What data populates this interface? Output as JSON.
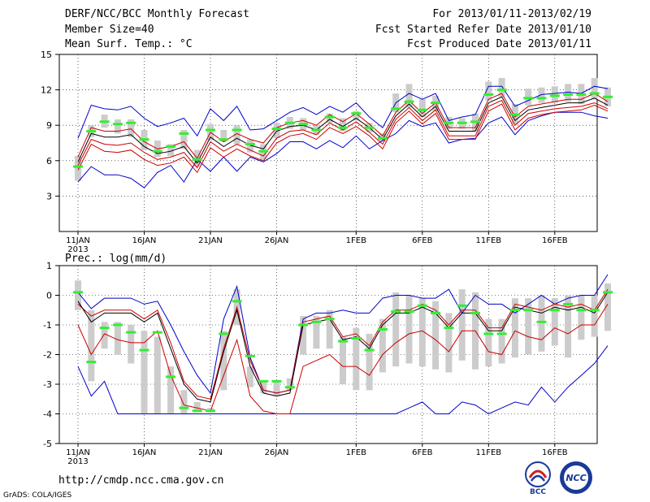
{
  "header": {
    "title": "DERF/NCC/BCC Monthly Forecast",
    "member_size": "Member Size=40",
    "variable": "Mean Surf. Temp.: °C",
    "period": "For 2013/01/11-2013/02/19",
    "started": "Fcst Started Refer Date 2013/01/10",
    "produced": "Fcst Produced Date 2013/01/11"
  },
  "second_panel_label": "Prec.: log(mm/d)",
  "footer": {
    "url": "http://cmdp.ncc.cma.gov.cn",
    "credit": "GrADS: COLA/IGES",
    "logo_left_text": "BCC",
    "logo_right_text": "NCC"
  },
  "colors": {
    "envelope": "#0000cc",
    "percentile": "#cc0000",
    "mean": "#000000",
    "box": "#cccccc",
    "median": "#33ee33"
  },
  "chart_data": [
    {
      "type": "line",
      "title": "Mean Surf. Temp.: °C",
      "ylim": [
        0,
        15
      ],
      "yticks": [
        "3",
        "6",
        "9",
        "12",
        "15"
      ],
      "xticks": [
        "11JAN",
        "16JAN",
        "21JAN",
        "26JAN",
        "1FEB",
        "6FEB",
        "11FEB",
        "16FEB"
      ],
      "xtick_days": [
        0,
        5,
        10,
        15,
        21,
        26,
        31,
        36
      ],
      "year_label": "2013",
      "series": {
        "max": [
          7.9,
          10.7,
          10.4,
          10.3,
          10.6,
          9.6,
          8.9,
          9.2,
          9.6,
          8.1,
          10.4,
          9.4,
          10.6,
          8.6,
          8.7,
          9.4,
          10.1,
          10.5,
          9.9,
          10.6,
          10.1,
          10.9,
          9.7,
          8.8,
          10.9,
          11.7,
          11.2,
          11.7,
          9.4,
          9.7,
          9.9,
          12.3,
          12.3,
          10.6,
          11.1,
          11.6,
          11.7,
          11.8,
          11.7,
          12.3,
          12.1
        ],
        "p90": [
          6.3,
          8.8,
          8.5,
          8.5,
          8.7,
          7.6,
          7.0,
          7.2,
          7.6,
          6.2,
          8.4,
          7.6,
          8.3,
          7.8,
          7.5,
          8.8,
          9.2,
          9.4,
          9.0,
          9.9,
          9.3,
          10.0,
          9.1,
          8.1,
          10.1,
          11.1,
          10.0,
          10.9,
          8.8,
          8.8,
          8.8,
          11.2,
          11.7,
          9.7,
          10.6,
          10.8,
          11.0,
          11.2,
          11.2,
          11.7,
          11.0
        ],
        "mean": [
          5.9,
          8.3,
          8.0,
          8.0,
          8.2,
          7.2,
          6.6,
          6.8,
          7.2,
          5.8,
          8.0,
          7.2,
          7.9,
          7.3,
          7.0,
          8.5,
          8.9,
          9.0,
          8.6,
          9.5,
          8.9,
          9.6,
          8.8,
          7.8,
          9.8,
          10.8,
          9.7,
          10.6,
          8.5,
          8.5,
          8.5,
          10.9,
          11.4,
          9.4,
          10.3,
          10.5,
          10.7,
          10.9,
          10.9,
          11.3,
          10.7
        ],
        "p10": [
          5.6,
          7.8,
          7.4,
          7.3,
          7.5,
          6.7,
          6.1,
          6.3,
          6.7,
          5.4,
          7.6,
          6.8,
          7.4,
          6.9,
          6.4,
          7.9,
          8.5,
          8.6,
          8.2,
          9.2,
          8.6,
          9.3,
          8.4,
          7.4,
          9.5,
          10.5,
          9.4,
          10.3,
          8.1,
          8.1,
          8.1,
          10.6,
          11.1,
          9.0,
          10.0,
          10.2,
          10.4,
          10.5,
          10.6,
          10.9,
          10.4
        ],
        "p5": [
          5.2,
          7.4,
          6.8,
          6.7,
          6.9,
          6.1,
          5.6,
          5.8,
          6.3,
          5.0,
          7.1,
          6.3,
          7.0,
          6.4,
          6.0,
          7.5,
          8.1,
          8.3,
          7.8,
          8.8,
          8.3,
          8.9,
          8.1,
          7.0,
          9.2,
          10.2,
          9.1,
          10.0,
          7.8,
          7.8,
          7.8,
          10.2,
          10.8,
          8.6,
          9.6,
          9.9,
          10.1,
          10.2,
          10.3,
          10.7,
          10.2
        ],
        "min": [
          4.2,
          5.5,
          4.8,
          4.8,
          4.5,
          3.7,
          5.0,
          5.6,
          4.2,
          6.1,
          5.1,
          6.3,
          5.1,
          6.3,
          5.9,
          6.6,
          7.6,
          7.6,
          7.0,
          7.7,
          7.1,
          8.1,
          7.0,
          7.7,
          8.3,
          9.4,
          8.9,
          9.2,
          7.5,
          7.8,
          7.9,
          9.2,
          9.7,
          8.2,
          9.4,
          9.8,
          10.1,
          10.1,
          10.1,
          9.8,
          9.6
        ],
        "box_top": [
          6.4,
          9.0,
          9.9,
          9.5,
          9.5,
          8.6,
          7.7,
          7.4,
          8.6,
          6.9,
          9.1,
          8.6,
          9.0,
          7.8,
          7.4,
          9.2,
          9.7,
          9.6,
          9.0,
          10.0,
          9.6,
          10.2,
          9.2,
          8.3,
          11.7,
          12.5,
          11.2,
          11.5,
          9.7,
          9.6,
          10.0,
          12.7,
          13.0,
          10.8,
          12.1,
          12.2,
          12.3,
          12.5,
          12.5,
          13.0,
          12.2
        ],
        "box_bot": [
          4.3,
          8.0,
          8.8,
          8.3,
          8.0,
          6.9,
          6.3,
          6.4,
          7.0,
          5.5,
          7.7,
          7.6,
          7.4,
          6.7,
          6.1,
          7.9,
          8.7,
          8.6,
          8.2,
          9.2,
          8.5,
          9.4,
          8.4,
          7.6,
          10.1,
          10.5,
          9.7,
          10.2,
          8.7,
          8.7,
          8.5,
          11.1,
          11.4,
          9.1,
          10.7,
          10.9,
          10.9,
          11.0,
          10.8,
          11.2,
          10.6
        ],
        "median": [
          5.5,
          8.5,
          9.3,
          9.1,
          9.2,
          7.8,
          6.8,
          7.2,
          8.3,
          6.1,
          8.6,
          7.8,
          8.6,
          7.4,
          6.8,
          8.7,
          9.2,
          9.1,
          8.6,
          9.7,
          8.8,
          10.0,
          8.8,
          7.9,
          10.4,
          11.0,
          10.3,
          10.9,
          9.2,
          9.2,
          9.3,
          11.6,
          12.0,
          9.9,
          11.3,
          11.3,
          11.5,
          11.6,
          11.6,
          11.7,
          11.4
        ]
      }
    },
    {
      "type": "line",
      "title": "Prec.: log(mm/d)",
      "ylim": [
        -5,
        1
      ],
      "yticks": [
        "1",
        "0",
        "-1",
        "-2",
        "-3",
        "-4",
        "-5"
      ],
      "xticks": [
        "11JAN",
        "16JAN",
        "21JAN",
        "26JAN",
        "1FEB",
        "6FEB",
        "11FEB",
        "16FEB"
      ],
      "xtick_days": [
        0,
        5,
        10,
        15,
        21,
        26,
        31,
        36
      ],
      "year_label": "2013",
      "series": {
        "max": [
          0.1,
          -0.45,
          -0.1,
          -0.1,
          -0.1,
          -0.3,
          -0.2,
          -1.0,
          -1.9,
          -2.7,
          -3.3,
          -0.8,
          0.3,
          -2.1,
          -3.2,
          -3.3,
          -3.2,
          -0.8,
          -0.6,
          -0.6,
          -0.5,
          -0.6,
          -0.6,
          -0.1,
          0.0,
          0.0,
          -0.1,
          -0.1,
          0.2,
          -0.6,
          0.0,
          -0.3,
          -0.3,
          -0.6,
          -0.3,
          0.0,
          -0.3,
          -0.1,
          0.0,
          0.0,
          0.7
        ],
        "mean": [
          -0.2,
          -0.9,
          -0.6,
          -0.6,
          -0.6,
          -0.9,
          -0.6,
          -1.8,
          -3.0,
          -3.5,
          -3.6,
          -1.9,
          -0.5,
          -2.4,
          -3.3,
          -3.4,
          -3.3,
          -1.0,
          -0.9,
          -0.8,
          -1.5,
          -1.4,
          -1.8,
          -1.0,
          -0.6,
          -0.6,
          -0.4,
          -0.6,
          -1.1,
          -0.6,
          -0.6,
          -1.2,
          -1.2,
          -0.4,
          -0.5,
          -0.6,
          -0.4,
          -0.5,
          -0.4,
          -0.6,
          0.1
        ],
        "p90": [
          -0.3,
          -0.7,
          -0.5,
          -0.5,
          -0.5,
          -0.8,
          -0.5,
          -1.6,
          -2.9,
          -3.4,
          -3.5,
          -1.8,
          -0.4,
          -2.2,
          -3.2,
          -3.3,
          -3.2,
          -0.9,
          -0.8,
          -0.7,
          -1.4,
          -1.3,
          -1.7,
          -0.9,
          -0.5,
          -0.5,
          -0.3,
          -0.5,
          -1.0,
          -0.5,
          -0.5,
          -1.1,
          -1.1,
          -0.3,
          -0.4,
          -0.5,
          -0.3,
          -0.4,
          -0.3,
          -0.5,
          0.2
        ],
        "p10": [
          -1.0,
          -2.0,
          -1.3,
          -1.5,
          -1.6,
          -1.6,
          -1.2,
          -2.7,
          -3.7,
          -3.8,
          -3.9,
          -2.7,
          -1.5,
          -3.4,
          -3.9,
          -4.0,
          -4.0,
          -2.4,
          -2.2,
          -2.0,
          -2.4,
          -2.4,
          -2.7,
          -2.0,
          -1.6,
          -1.3,
          -1.2,
          -1.5,
          -1.9,
          -1.2,
          -1.2,
          -1.9,
          -2.0,
          -1.2,
          -1.4,
          -1.5,
          -1.1,
          -1.3,
          -1.0,
          -1.0,
          -0.3
        ],
        "min": [
          -2.4,
          -3.4,
          -2.9,
          -4.0,
          -4.0,
          -4.0,
          -4.0,
          -4.0,
          -4.0,
          -4.0,
          -4.0,
          -4.0,
          -4.0,
          -4.0,
          -4.0,
          -4.0,
          -4.0,
          -4.0,
          -4.0,
          -4.0,
          -4.0,
          -4.0,
          -4.0,
          -4.0,
          -4.0,
          -3.8,
          -3.6,
          -4.0,
          -4.0,
          -3.6,
          -3.7,
          -4.0,
          -3.8,
          -3.6,
          -3.7,
          -3.1,
          -3.6,
          -3.1,
          -2.7,
          -2.3,
          -1.7
        ],
        "box_top": [
          0.5,
          -0.5,
          -0.9,
          -0.9,
          -1.0,
          -1.2,
          -1.4,
          -2.4,
          -3.2,
          -3.6,
          -3.8,
          -1.2,
          0.2,
          -2.4,
          -2.9,
          -2.9,
          -2.8,
          -0.7,
          -0.7,
          -0.5,
          -1.4,
          -1.1,
          -1.3,
          -0.8,
          0.1,
          0.0,
          -0.1,
          -0.2,
          -0.6,
          0.2,
          0.1,
          -0.8,
          -0.8,
          -0.1,
          -0.1,
          0.0,
          -0.1,
          0.0,
          0.0,
          0.0,
          0.4
        ],
        "box_bot": [
          -0.5,
          -2.9,
          -1.8,
          -2.0,
          -2.3,
          -4.0,
          -4.0,
          -4.0,
          -4.0,
          -3.9,
          -3.9,
          -3.2,
          -1.0,
          -3.1,
          -3.3,
          -3.4,
          -3.2,
          -2.0,
          -1.8,
          -1.8,
          -3.0,
          -3.2,
          -3.2,
          -2.6,
          -2.4,
          -2.3,
          -2.4,
          -2.5,
          -2.6,
          -2.2,
          -2.5,
          -2.4,
          -2.3,
          -2.1,
          -2.0,
          -1.9,
          -1.7,
          -2.1,
          -1.5,
          -1.4,
          -1.2
        ],
        "median": [
          0.1,
          -2.25,
          -1.1,
          -1.0,
          -1.25,
          -1.85,
          -1.25,
          -2.75,
          -3.8,
          -3.9,
          -3.9,
          -1.3,
          -0.2,
          -2.05,
          -2.9,
          -2.9,
          -3.1,
          -1.0,
          -0.9,
          -0.8,
          -1.55,
          -1.45,
          -1.85,
          -1.15,
          -0.55,
          -0.55,
          -0.35,
          -0.6,
          -1.1,
          -0.35,
          -0.6,
          -1.3,
          -1.3,
          -0.5,
          -0.5,
          -0.9,
          -0.5,
          -0.3,
          -0.5,
          -0.5,
          0.1
        ]
      }
    }
  ]
}
